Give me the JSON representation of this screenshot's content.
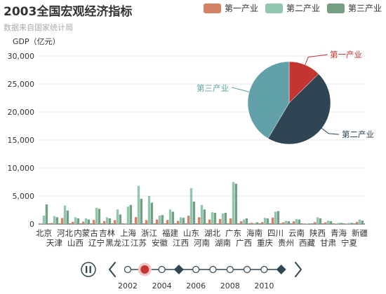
{
  "title": "2003全国宏观经济指标",
  "subtitle": "数据来自国家统计局",
  "legend": [
    "第一产业",
    "第二产业",
    "第三产业"
  ],
  "colors": {
    "第一产业": "#d48265",
    "第二产业": "#91c7ae",
    "第三产业": "#749f83",
    "pie_第一产业": "#c23531",
    "pie_第二产业": "#2f4554",
    "pie_第三产业": "#61a0a8",
    "timeline_current": "#c23531",
    "timeline_line": "#304654"
  },
  "chart_data": [
    {
      "type": "bar",
      "ylabel": "GDP（亿元）",
      "ylim": [
        0,
        30000
      ],
      "yticks": [
        "0",
        "5,000",
        "10,000",
        "15,000",
        "20,000",
        "25,000",
        "30,000"
      ],
      "categories": [
        "北京",
        "天津",
        "河北",
        "山西",
        "内蒙古",
        "辽宁",
        "吉林",
        "黑龙江",
        "上海",
        "江苏",
        "浙江",
        "安徽",
        "福建",
        "江西",
        "山东",
        "河南",
        "湖北",
        "湖南",
        "广东",
        "广西",
        "海南",
        "重庆",
        "四川",
        "贵州",
        "云南",
        "西藏",
        "陕西",
        "甘肃",
        "青海",
        "宁夏",
        "新疆"
      ],
      "category_rows": {
        "top": [
          "北京",
          "河北",
          "内蒙古",
          "吉林",
          "上海",
          "浙江",
          "福建",
          "山东",
          "湖北",
          "广东",
          "海南",
          "四川",
          "云南",
          "陕西",
          "青海",
          "新疆"
        ],
        "bottom": [
          "天津",
          "山西",
          "辽宁",
          "黑龙江",
          "江苏",
          "安徽",
          "江西",
          "河南",
          "湖南",
          "广西",
          "重庆",
          "贵州",
          "西藏",
          "甘肃",
          "宁夏"
        ]
      },
      "series": [
        {
          "name": "第一产业",
          "values": [
            90,
            180,
            1060,
            380,
            420,
            720,
            520,
            680,
            90,
            1230,
            690,
            800,
            710,
            560,
            1480,
            1200,
            800,
            890,
            1000,
            490,
            210,
            340,
            1130,
            300,
            480,
            40,
            340,
            300,
            70,
            70,
            370
          ]
        },
        {
          "name": "第二产业",
          "values": [
            1500,
            1400,
            3300,
            1200,
            1000,
            2900,
            1200,
            2600,
            3100,
            6800,
            5000,
            1500,
            2600,
            1200,
            6400,
            3400,
            2100,
            1900,
            7500,
            800,
            150,
            1100,
            2200,
            600,
            900,
            60,
            1200,
            600,
            200,
            200,
            800
          ]
        },
        {
          "name": "第三产业",
          "values": [
            3500,
            1200,
            2400,
            1000,
            800,
            2700,
            1000,
            1700,
            3400,
            4500,
            3800,
            1600,
            2200,
            1100,
            4000,
            2600,
            2000,
            2000,
            7200,
            1000,
            300,
            1000,
            2300,
            500,
            800,
            100,
            1000,
            500,
            200,
            200,
            600
          ]
        }
      ]
    },
    {
      "type": "pie",
      "slices": [
        {
          "label": "第一产业",
          "value": 17000
        },
        {
          "label": "第二产业",
          "value": 62000
        },
        {
          "label": "第三产业",
          "value": 56000
        }
      ]
    }
  ],
  "timeline": {
    "years": [
      "2002",
      "2003",
      "2004",
      "2005",
      "2006",
      "2007",
      "2008",
      "2009",
      "2010",
      "2011"
    ],
    "labels": [
      "2002",
      "2004",
      "2006",
      "2008",
      "2010"
    ],
    "current_index": 1,
    "special_indices": [
      3,
      9
    ],
    "play_icon": "pause-icon",
    "prev_icon": "chevron-left-icon",
    "next_icon": "chevron-right-icon"
  }
}
